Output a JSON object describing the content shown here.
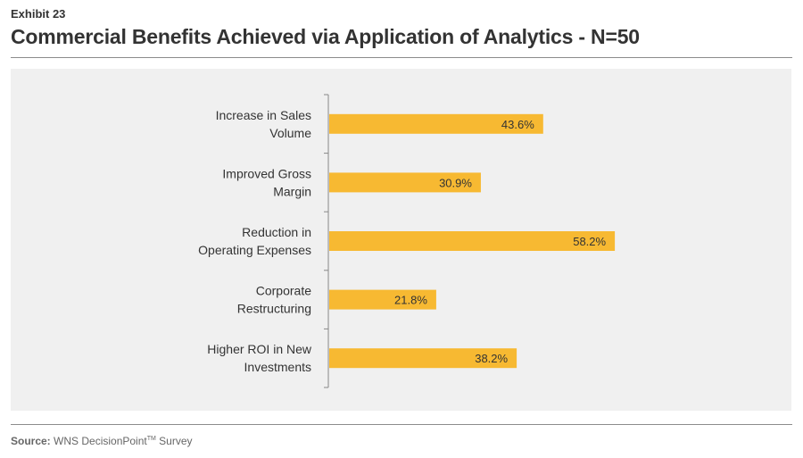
{
  "header": {
    "exhibit": "Exhibit 23",
    "title": "Commercial Benefits Achieved via Application of Analytics - N=50"
  },
  "footer": {
    "source_label": "Source:",
    "source_text": "WNS DecisionPoint",
    "source_tm": "TM",
    "source_suffix": " Survey"
  },
  "colors": {
    "bar": "#f7b932",
    "panel": "#f0f0f0",
    "axis": "#888888"
  },
  "chart_data": {
    "type": "bar",
    "orientation": "horizontal",
    "categories": [
      [
        "Increase in Sales",
        "Volume"
      ],
      [
        "Improved Gross",
        "Margin"
      ],
      [
        "Reduction in",
        "Operating Expenses"
      ],
      [
        "Corporate",
        "Restructuring"
      ],
      [
        "Higher ROI in New",
        "Investments"
      ]
    ],
    "values": [
      43.6,
      30.9,
      58.2,
      21.8,
      38.2
    ],
    "value_labels": [
      "43.6%",
      "30.9%",
      "58.2%",
      "21.8%",
      "38.2%"
    ],
    "xlim": [
      0,
      100
    ],
    "grid": false
  }
}
